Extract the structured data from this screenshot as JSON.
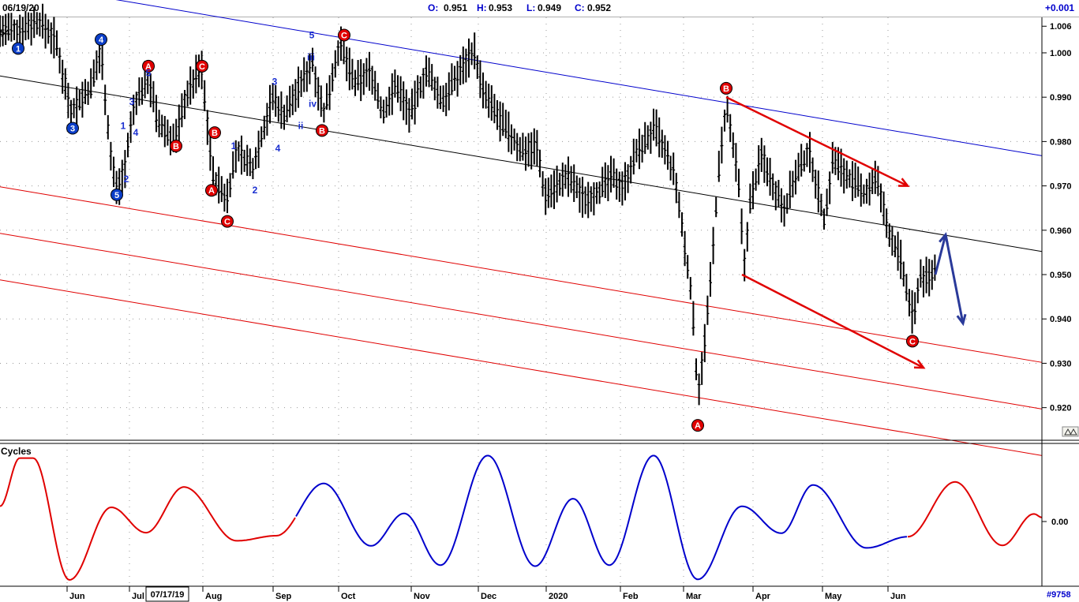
{
  "header": {
    "date": "06/19/20",
    "open_label": "O:",
    "open_value": "0.951",
    "high_label": "H:",
    "high_value": "0.953",
    "low_label": "L:",
    "low_value": "0.949",
    "close_label": "C:",
    "close_value": "0.952",
    "change": "+0.001",
    "left_clip": "54"
  },
  "chart_data": [
    {
      "type": "ohlc",
      "panel": "price",
      "ylim": [
        0.913,
        1.008
      ],
      "y_ticks": [
        "1.006",
        "1.000",
        "0.990",
        "0.980",
        "0.970",
        "0.960",
        "0.950",
        "0.940",
        "0.930",
        "0.920"
      ],
      "x_labels": [
        "Jun",
        "Jul",
        "Aug",
        "Sep",
        "Oct",
        "Nov",
        "Dec",
        "2020",
        "Feb",
        "Mar",
        "Apr",
        "May",
        "Jun"
      ],
      "cursor_date": "07/17/19",
      "grid": true,
      "waypoints": [
        [
          20,
          1.005
        ],
        [
          50,
          1.007
        ],
        [
          70,
          1.003
        ],
        [
          90,
          0.987
        ],
        [
          100,
          0.989
        ],
        [
          115,
          0.992
        ],
        [
          128,
          1.001
        ],
        [
          140,
          0.977
        ],
        [
          148,
          0.969
        ],
        [
          158,
          0.974
        ],
        [
          170,
          0.988
        ],
        [
          188,
          0.995
        ],
        [
          200,
          0.984
        ],
        [
          222,
          0.98
        ],
        [
          235,
          0.99
        ],
        [
          255,
          0.997
        ],
        [
          270,
          0.972
        ],
        [
          287,
          0.967
        ],
        [
          300,
          0.978
        ],
        [
          320,
          0.974
        ],
        [
          345,
          0.99
        ],
        [
          360,
          0.986
        ],
        [
          378,
          0.992
        ],
        [
          396,
          0.998
        ],
        [
          410,
          0.986
        ],
        [
          430,
          1.002
        ],
        [
          450,
          0.993
        ],
        [
          470,
          0.996
        ],
        [
          485,
          0.986
        ],
        [
          502,
          0.993
        ],
        [
          520,
          0.986
        ],
        [
          540,
          0.996
        ],
        [
          560,
          0.989
        ],
        [
          580,
          0.995
        ],
        [
          600,
          1.001
        ],
        [
          612,
          0.991
        ],
        [
          640,
          0.983
        ],
        [
          660,
          0.978
        ],
        [
          680,
          0.979
        ],
        [
          690,
          0.968
        ],
        [
          720,
          0.972
        ],
        [
          740,
          0.967
        ],
        [
          760,
          0.969
        ],
        [
          775,
          0.972
        ],
        [
          790,
          0.97
        ],
        [
          805,
          0.977
        ],
        [
          830,
          0.983
        ],
        [
          855,
          0.972
        ],
        [
          870,
          0.953
        ],
        [
          876,
          0.946
        ],
        [
          884,
          0.923
        ],
        [
          893,
          0.935
        ],
        [
          900,
          0.948
        ],
        [
          910,
          0.972
        ],
        [
          920,
          0.988
        ],
        [
          935,
          0.972
        ],
        [
          943,
          0.952
        ],
        [
          950,
          0.966
        ],
        [
          965,
          0.977
        ],
        [
          985,
          0.968
        ],
        [
          995,
          0.965
        ],
        [
          1005,
          0.971
        ],
        [
          1025,
          0.978
        ],
        [
          1045,
          0.962
        ],
        [
          1055,
          0.976
        ],
        [
          1075,
          0.972
        ],
        [
          1095,
          0.968
        ],
        [
          1110,
          0.972
        ],
        [
          1125,
          0.96
        ],
        [
          1140,
          0.954
        ],
        [
          1150,
          0.945
        ],
        [
          1158,
          0.94
        ],
        [
          1165,
          0.95
        ],
        [
          1175,
          0.949
        ],
        [
          1185,
          0.951
        ]
      ],
      "regression_channel": {
        "start": [
          0,
          0.9948
        ],
        "end": [
          1320,
          0.9552
        ],
        "lines": [
          {
            "offset": 0.0,
            "color": "#000000"
          },
          {
            "offset": 0.0216,
            "color": "#0000cc"
          },
          {
            "offset": -0.025,
            "color": "#e00000"
          },
          {
            "offset": -0.0355,
            "color": "#e00000"
          },
          {
            "offset": -0.046,
            "color": "#e00000"
          }
        ]
      },
      "projection_lines": [
        {
          "from": [
            920,
            0.99
          ],
          "to": [
            1150,
            0.97
          ],
          "color": "#e00000"
        },
        {
          "from": [
            940,
            0.95
          ],
          "to": [
            1170,
            0.929
          ],
          "color": "#e00000"
        },
        {
          "from": [
            1185,
            0.95
          ],
          "to": [
            1198,
            0.959
          ],
          "color": "#2a3a9a"
        },
        {
          "from": [
            1198,
            0.959
          ],
          "to": [
            1220,
            0.939
          ],
          "color": "#2a3a9a"
        }
      ],
      "wave_markers_circled": [
        {
          "text": "1",
          "x": 23,
          "y": 1.001,
          "color": "#0b3ec8"
        },
        {
          "text": "4",
          "x": 128,
          "y": 1.003,
          "color": "#0b3ec8"
        },
        {
          "text": "3",
          "x": 92,
          "y": 0.983,
          "color": "#0b3ec8"
        },
        {
          "text": "5",
          "x": 148,
          "y": 0.968,
          "color": "#0b3ec8"
        },
        {
          "text": "A",
          "x": 188,
          "y": 0.997,
          "color": "#e00000"
        },
        {
          "text": "C",
          "x": 256,
          "y": 0.997,
          "color": "#e00000"
        },
        {
          "text": "B",
          "x": 223,
          "y": 0.979,
          "color": "#e00000"
        },
        {
          "text": "B",
          "x": 272,
          "y": 0.982,
          "color": "#e00000"
        },
        {
          "text": "A",
          "x": 268,
          "y": 0.969,
          "color": "#e00000"
        },
        {
          "text": "C",
          "x": 288,
          "y": 0.962,
          "color": "#e00000"
        },
        {
          "text": "C",
          "x": 436,
          "y": 1.004,
          "color": "#e00000"
        },
        {
          "text": "B",
          "x": 408,
          "y": 0.9825,
          "color": "#e00000"
        },
        {
          "text": "B",
          "x": 920,
          "y": 0.992,
          "color": "#e00000"
        },
        {
          "text": "A",
          "x": 884,
          "y": 0.916,
          "color": "#e00000"
        },
        {
          "text": "C",
          "x": 1156,
          "y": 0.935,
          "color": "#e00000"
        }
      ],
      "wave_labels": [
        {
          "text": "5",
          "x": 188,
          "y": 0.9955
        },
        {
          "text": "3",
          "x": 167,
          "y": 0.989
        },
        {
          "text": "1",
          "x": 156,
          "y": 0.9835
        },
        {
          "text": "4",
          "x": 172,
          "y": 0.982
        },
        {
          "text": "2",
          "x": 160,
          "y": 0.9715
        },
        {
          "text": "3",
          "x": 348,
          "y": 0.9935
        },
        {
          "text": "1",
          "x": 296,
          "y": 0.979
        },
        {
          "text": "4",
          "x": 352,
          "y": 0.9785
        },
        {
          "text": "2",
          "x": 323,
          "y": 0.969
        },
        {
          "text": "5",
          "x": 395,
          "y": 1.004
        },
        {
          "text": "iii",
          "x": 394,
          "y": 0.999
        },
        {
          "text": "iv",
          "x": 396,
          "y": 0.9885
        },
        {
          "text": "ii",
          "x": 381,
          "y": 0.9835
        }
      ]
    },
    {
      "type": "line",
      "panel": "cycles",
      "title": "Cycles",
      "y_ticks": [
        "0.00"
      ],
      "ylim": [
        -1.3,
        1.3
      ],
      "series": [
        {
          "color": "#e00000",
          "segment": [
            0,
            375
          ]
        },
        {
          "color": "#0000cc",
          "segment": [
            375,
            1150
          ]
        },
        {
          "color": "#e00000",
          "segment": [
            1150,
            1320
          ]
        }
      ],
      "extrema": [
        [
          0,
          0.3
        ],
        [
          25,
          1.25
        ],
        [
          42,
          1.25
        ],
        [
          88,
          -1.15
        ],
        [
          141,
          0.28
        ],
        [
          185,
          -0.22
        ],
        [
          233,
          0.68
        ],
        [
          300,
          -0.38
        ],
        [
          350,
          -0.28
        ],
        [
          410,
          0.75
        ],
        [
          470,
          -0.48
        ],
        [
          512,
          0.16
        ],
        [
          558,
          -0.86
        ],
        [
          618,
          1.3
        ],
        [
          678,
          -0.88
        ],
        [
          726,
          0.45
        ],
        [
          772,
          -0.86
        ],
        [
          828,
          1.3
        ],
        [
          884,
          -1.14
        ],
        [
          940,
          0.3
        ],
        [
          990,
          -0.23
        ],
        [
          1030,
          0.72
        ],
        [
          1098,
          -0.52
        ],
        [
          1150,
          -0.3
        ],
        [
          1210,
          0.78
        ],
        [
          1270,
          -0.47
        ],
        [
          1310,
          0.15
        ],
        [
          1320,
          0.08
        ]
      ]
    }
  ],
  "footer": {
    "right_label": "#9758"
  },
  "colors": {
    "black": "#000000",
    "blue": "#0000cc",
    "red": "#e00000",
    "marker_blue": "#0b3ec8",
    "arrow_blue": "#2a3a9a"
  },
  "icons": [
    "scale-icon"
  ]
}
